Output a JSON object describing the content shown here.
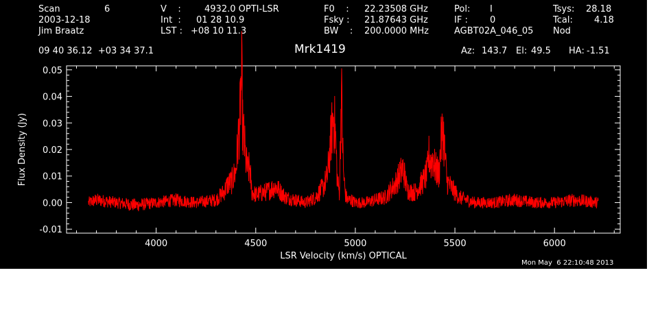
{
  "header": {
    "scan_label": "Scan",
    "scan_value": "6",
    "date": "2003-12-18",
    "observer": "Jim Braatz",
    "v_label": "V    :",
    "v_value": "4932.0 OPTI-LSR",
    "int_label": "Int  :",
    "int_value": "01 28 10.9",
    "lst_label": "LST :",
    "lst_value": "+08 10 11.3",
    "f0_label": "F0    :",
    "f0_value": "22.23508 GHz",
    "fsky_label": "Fsky :",
    "fsky_value": "21.87643 GHz",
    "bw_label": "BW    :",
    "bw_value": "200.0000 MHz",
    "pol_label": "Pol:",
    "pol_value": "I",
    "if_label": "IF :",
    "if_value": "0",
    "project": "AGBT02A_046_05",
    "tsys_label": "Tsys:",
    "tsys_value": "28.18",
    "tcal_label": "Tcal:",
    "tcal_value": "4.18",
    "mode": "Nod",
    "coords": "09 40 36.12  +03 34 37.1",
    "source": "Mrk1419",
    "az_label": "Az:",
    "az_value": "143.7",
    "el_label": "El:",
    "el_value": "49.5",
    "ha_label": "HA:",
    "ha_value": "-1.51",
    "timestamp": "Mon May  6 22:10:48 2013"
  },
  "chart_data": {
    "type": "line",
    "title": "Mrk1419",
    "xlabel": "LSR Velocity (km/s) OPTICAL",
    "ylabel": "Flux Density (Jy)",
    "xlim": [
      3550,
      6330
    ],
    "ylim": [
      -0.0115,
      0.0515
    ],
    "xticks": [
      4000,
      4500,
      5000,
      5500,
      6000
    ],
    "yticks": [
      -0.01,
      0.0,
      0.01,
      0.02,
      0.03,
      0.04,
      0.05
    ],
    "ytick_labels": [
      "-0.01",
      "0.00",
      "0.01",
      "0.02",
      "0.03",
      "0.04",
      "0.05"
    ],
    "grid": false,
    "series": [
      {
        "color": "#ff0000",
        "x": [
          3660,
          3700,
          3800,
          3900,
          4000,
          4100,
          4200,
          4300,
          4340,
          4360,
          4380,
          4400,
          4410,
          4420,
          4425,
          4430,
          4435,
          4440,
          4450,
          4460,
          4470,
          4480,
          4500,
          4550,
          4600,
          4650,
          4700,
          4750,
          4800,
          4840,
          4860,
          4870,
          4880,
          4890,
          4900,
          4910,
          4920,
          4930,
          4940,
          4950,
          4960,
          4980,
          5000,
          5050,
          5100,
          5150,
          5200,
          5240,
          5250,
          5260,
          5280,
          5300,
          5340,
          5360,
          5370,
          5380,
          5390,
          5400,
          5410,
          5420,
          5430,
          5440,
          5460,
          5480,
          5500,
          5520,
          5560,
          5600,
          5700,
          5800,
          5900,
          6000,
          6100,
          6220
        ],
        "y": [
          0.0,
          0.001,
          0.0,
          -0.001,
          0.0,
          0.001,
          0.0,
          0.001,
          0.004,
          0.007,
          0.008,
          0.012,
          0.022,
          0.031,
          0.041,
          0.047,
          0.027,
          0.025,
          0.016,
          0.012,
          0.013,
          0.004,
          0.003,
          0.004,
          0.006,
          0.002,
          0.001,
          0.0,
          0.002,
          0.006,
          0.01,
          0.018,
          0.026,
          0.033,
          0.026,
          0.008,
          0.004,
          0.042,
          0.012,
          0.003,
          0.001,
          0.001,
          0.0,
          0.0,
          0.001,
          0.002,
          0.007,
          0.013,
          0.009,
          0.005,
          0.004,
          0.004,
          0.008,
          0.011,
          0.018,
          0.015,
          0.017,
          0.013,
          0.012,
          0.011,
          0.022,
          0.028,
          0.008,
          0.006,
          0.004,
          0.002,
          0.001,
          0.0,
          0.0,
          0.001,
          0.0,
          0.0,
          0.001,
          0.0
        ]
      }
    ]
  }
}
